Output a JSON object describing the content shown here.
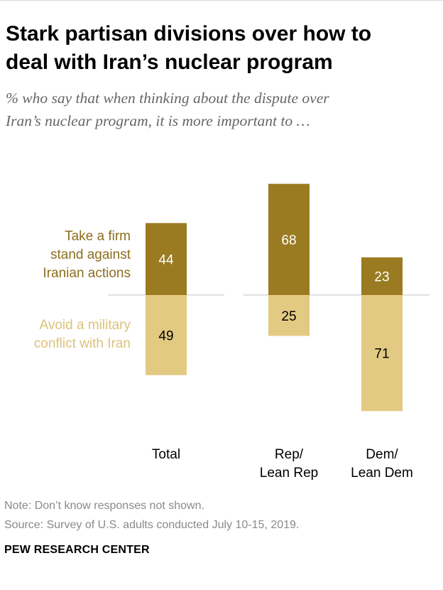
{
  "title": "Stark partisan divisions over how to\ndeal with Iran’s nuclear program",
  "subtitle": "% who say that when thinking about the dispute over\nIran’s nuclear program, it is more important to …",
  "note": "Note: Don’t know responses not shown.",
  "source": "Source: Survey of U.S. adults conducted July 10-15, 2019.",
  "organization": "PEW RESEARCH CENTER",
  "colors": {
    "firm_stand": "#9b7b21",
    "avoid_conflict": "#e2ca82",
    "firm_label": "#8c6f1e",
    "avoid_label": "#dcc27a",
    "baseline": "#cfcfcf"
  },
  "chart_data": {
    "type": "bar",
    "layout": "diverging-stacked",
    "categories": [
      [
        "Total"
      ],
      [
        "Rep/",
        "Lean Rep"
      ],
      [
        "Dem/",
        "Lean Dem"
      ]
    ],
    "series": [
      {
        "name": "Take a firm stand against Iranian actions",
        "label_lines": [
          "Take a firm",
          "stand against",
          "Iranian actions"
        ],
        "direction": "up",
        "values": [
          44,
          68,
          23
        ]
      },
      {
        "name": "Avoid a military conflict with Iran",
        "label_lines": [
          "Avoid a military",
          "conflict with Iran"
        ],
        "direction": "down",
        "values": [
          49,
          25,
          71
        ]
      }
    ],
    "grid": false
  }
}
